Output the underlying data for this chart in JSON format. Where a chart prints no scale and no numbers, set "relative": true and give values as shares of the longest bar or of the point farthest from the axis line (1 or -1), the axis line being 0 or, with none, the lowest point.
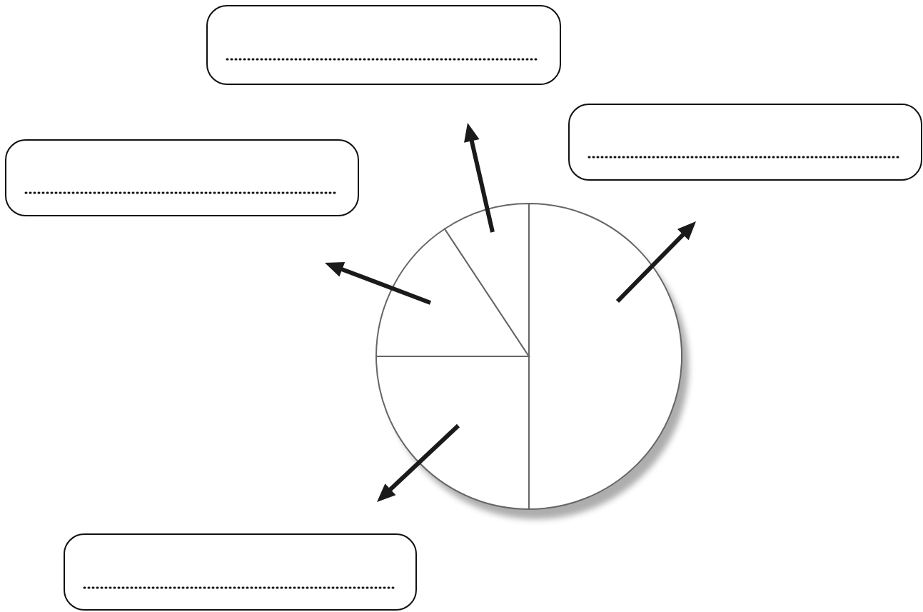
{
  "chart_data": {
    "type": "pie",
    "relative": true,
    "categories": [
      null,
      null,
      null,
      null
    ],
    "values": [
      50,
      25,
      15.7,
      9.3
    ],
    "colors": [
      "#ffffff",
      "#ffffff",
      "#ffffff",
      "#ffffff"
    ]
  }
}
